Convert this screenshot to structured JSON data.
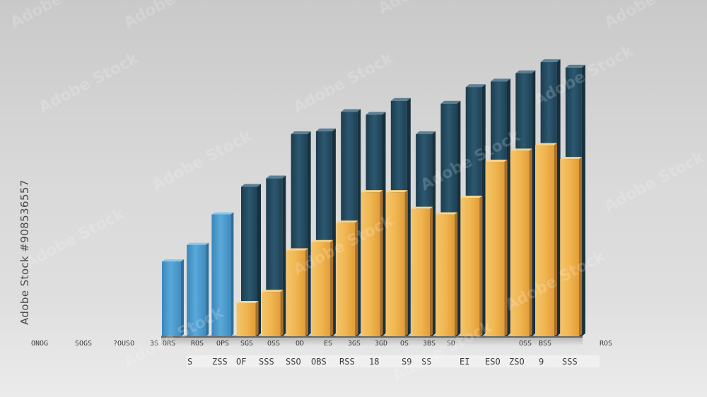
{
  "chart_data": {
    "type": "bar",
    "xlabel": "",
    "ylabel": "",
    "ylim": [
      0,
      100
    ],
    "grid": false,
    "legend": "none",
    "colors": {
      "blue": "#4f9ccd",
      "navy": "#244a5e",
      "gold": "#efb14e",
      "shadow": "#8c6a3a"
    },
    "back_bars": [
      {
        "color": "navy",
        "value": 54
      },
      {
        "color": "navy",
        "value": 57
      },
      {
        "color": "navy",
        "value": 73
      },
      {
        "color": "navy",
        "value": 74
      },
      {
        "color": "navy",
        "value": 81
      },
      {
        "color": "navy",
        "value": 80
      },
      {
        "color": "navy",
        "value": 85
      },
      {
        "color": "navy",
        "value": 73
      },
      {
        "color": "navy",
        "value": 84
      },
      {
        "color": "navy",
        "value": 90
      },
      {
        "color": "navy",
        "value": 92
      },
      {
        "color": "navy",
        "value": 95
      },
      {
        "color": "navy",
        "value": 99
      },
      {
        "color": "navy",
        "value": 97
      }
    ],
    "front_bars": [
      {
        "color": "blue",
        "value": 27
      },
      {
        "color": "blue",
        "value": 33
      },
      {
        "color": "blue",
        "value": 44
      },
      {
        "color": "gold",
        "value": 12
      },
      {
        "color": "gold",
        "value": 16
      },
      {
        "color": "gold",
        "value": 31
      },
      {
        "color": "gold",
        "value": 34
      },
      {
        "color": "gold",
        "value": 41
      },
      {
        "color": "gold",
        "value": 52
      },
      {
        "color": "gold",
        "value": 52
      },
      {
        "color": "gold",
        "value": 46
      },
      {
        "color": "gold",
        "value": 44
      },
      {
        "color": "gold",
        "value": 50
      },
      {
        "color": "gold",
        "value": 63
      },
      {
        "color": "gold",
        "value": 67
      },
      {
        "color": "gold",
        "value": 69
      },
      {
        "color": "gold",
        "value": 64
      }
    ],
    "labels_row1": [
      "ONOG",
      "SOGS",
      "?OUSO",
      "3S ORS",
      "ROS",
      "OPS",
      "SGS",
      "OSS",
      "OD",
      "ES",
      "3GS",
      "3GD",
      "OS",
      "3BS",
      "SD",
      "OSS",
      "BSS",
      "ROS"
    ],
    "labels_row2": [
      "S",
      "ZSS",
      "OF",
      "SSS",
      "SSO",
      "OBS",
      "RSS",
      "18",
      "S9",
      "SS",
      "EI",
      "ESO",
      "ZSO",
      "9",
      "SSS"
    ]
  },
  "watermark": {
    "text": "Adobe Stock",
    "id": "#908536557"
  }
}
